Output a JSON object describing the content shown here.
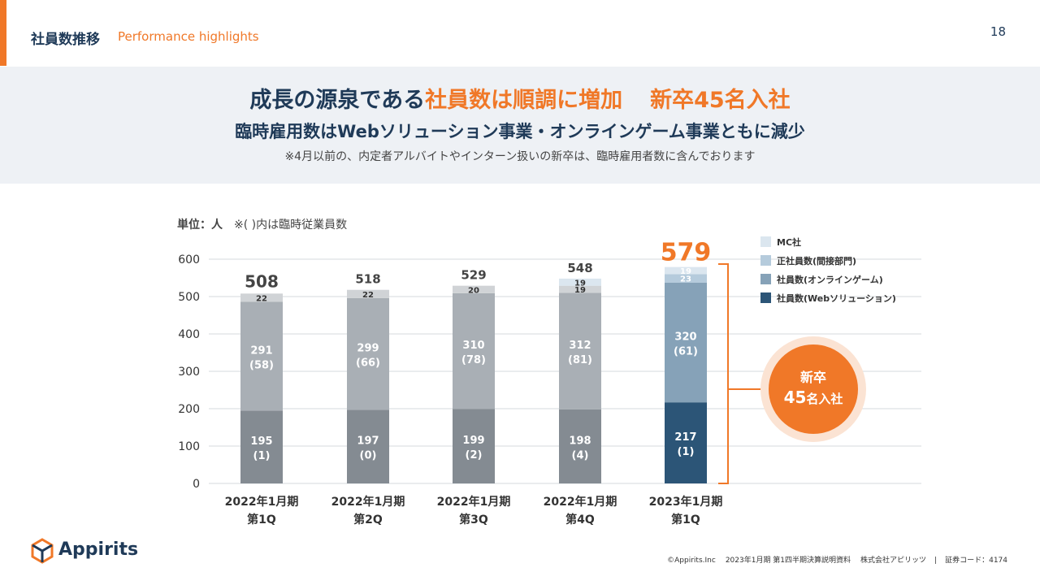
{
  "header": {
    "title": "社員数推移",
    "subtitle": "Performance highlights",
    "page_number": "18"
  },
  "banner": {
    "headline_pre": "成長の源泉である",
    "headline_hl": "社員数は順調に増加",
    "headline_post": "新卒45名入社",
    "subline": "臨時雇用数はWebソリューション事業・オンラインゲーム事業ともに減少",
    "note": "※4月以前の、内定者アルバイトやインターン扱いの新卒は、臨時雇用者数に含んでおります"
  },
  "unit_label": "単位：人",
  "unit_note": "※( )内は臨時従業員数",
  "callout": {
    "line1": "新卒",
    "line2_num": "45",
    "line2_text": "名入社"
  },
  "footer": {
    "logo_text": "Appirits",
    "copyright": "©Appirits.Inc",
    "doc": "2023年1月期 第1四半期決算説明資料",
    "company": "株式会社アピリッツ",
    "code": "証券コード：4174"
  },
  "colors": {
    "accent": "#f07828",
    "navy": "#1f3a58",
    "web_gray": "#848b92",
    "game_gray": "#a9afb5",
    "indirect_gray": "#d0d3d6",
    "web_blue": "#2c5577",
    "game_blue": "#86a2b8",
    "indirect_blue": "#b5cbdc",
    "mc_blue": "#dbe6ef"
  },
  "chart_data": {
    "type": "bar",
    "stacked": true,
    "categories": [
      [
        "2022年1月期",
        "第1Q"
      ],
      [
        "2022年1月期",
        "第2Q"
      ],
      [
        "2022年1月期",
        "第3Q"
      ],
      [
        "2022年1月期",
        "第4Q"
      ],
      [
        "2023年1月期",
        "第1Q"
      ]
    ],
    "ylim": [
      0,
      600
    ],
    "yticks": [
      0,
      100,
      200,
      300,
      400,
      500,
      600
    ],
    "series": [
      {
        "name": "社員数(Webソリューション)",
        "values": [
          195,
          197,
          199,
          198,
          217
        ],
        "labels": [
          "195",
          "197",
          "199",
          "198",
          "217"
        ],
        "sublabels": [
          "(1)",
          "(0)",
          "(2)",
          "(4)",
          "(1)"
        ]
      },
      {
        "name": "社員数(オンラインゲーム)",
        "values": [
          291,
          299,
          310,
          312,
          320
        ],
        "labels": [
          "291",
          "299",
          "310",
          "312",
          "320"
        ],
        "sublabels": [
          "(58)",
          "(66)",
          "(78)",
          "(81)",
          "(61)"
        ]
      },
      {
        "name": "正社員数(間接部門)",
        "values": [
          22,
          22,
          20,
          19,
          23
        ],
        "labels": [
          "22",
          "22",
          "20",
          "19",
          "23"
        ],
        "sublabels": [
          "",
          "",
          "",
          "",
          ""
        ]
      },
      {
        "name": "MC社",
        "values": [
          0,
          0,
          0,
          19,
          19
        ],
        "labels": [
          "",
          "",
          "",
          "19",
          "19"
        ],
        "sublabels": [
          "",
          "",
          "",
          "",
          ""
        ]
      }
    ],
    "totals": [
      "508",
      "518",
      "529",
      "548",
      "579"
    ],
    "legend": [
      "MC社",
      "正社員数(間接部門)",
      "社員数(オンラインゲーム)",
      "社員数(Webソリューション)"
    ]
  }
}
